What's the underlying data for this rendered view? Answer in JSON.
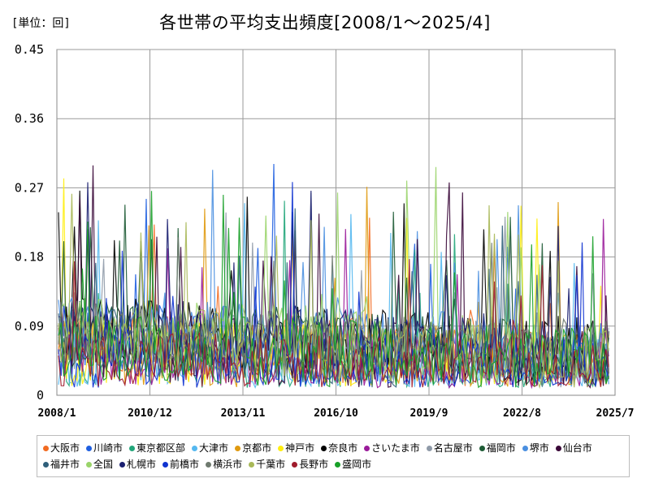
{
  "chart_data": {
    "type": "line",
    "title": "各世帯の平均支出頻度[2008/1～2025/4]",
    "unit_label": "[単位：回]",
    "ylim": [
      0,
      0.45
    ],
    "yticks": [
      "0",
      "0.09",
      "0.18",
      "0.27",
      "0.36",
      "0.45"
    ],
    "xticks": [
      "2008/1",
      "2010/12",
      "2013/11",
      "2016/10",
      "2019/9",
      "2022/8",
      "2025/7"
    ],
    "grid": true,
    "legend_position": "bottom",
    "series": [
      {
        "name": "大阪市",
        "color": "#f26b21"
      },
      {
        "name": "川崎市",
        "color": "#1f5fe0"
      },
      {
        "name": "東京都区部",
        "color": "#22a67a"
      },
      {
        "name": "大津市",
        "color": "#55b8f0"
      },
      {
        "name": "京都市",
        "color": "#e09a10"
      },
      {
        "name": "神戸市",
        "color": "#ffee10"
      },
      {
        "name": "奈良市",
        "color": "#000000"
      },
      {
        "name": "さいたま市",
        "color": "#9a1b9a"
      },
      {
        "name": "名古屋市",
        "color": "#8f9aa8"
      },
      {
        "name": "福岡市",
        "color": "#1e5b35"
      },
      {
        "name": "堺市",
        "color": "#4a8fe0"
      },
      {
        "name": "仙台市",
        "color": "#3a0838"
      },
      {
        "name": "福井市",
        "color": "#2f5f7a"
      },
      {
        "name": "全国",
        "color": "#9ad46a"
      },
      {
        "name": "札幌市",
        "color": "#1a1f70"
      },
      {
        "name": "前橋市",
        "color": "#1033d0"
      },
      {
        "name": "横浜市",
        "color": "#6f7a6f"
      },
      {
        "name": "千葉市",
        "color": "#a8b858"
      },
      {
        "name": "長野市",
        "color": "#a01c2c"
      },
      {
        "name": "盛岡市",
        "color": "#18a028"
      }
    ]
  }
}
